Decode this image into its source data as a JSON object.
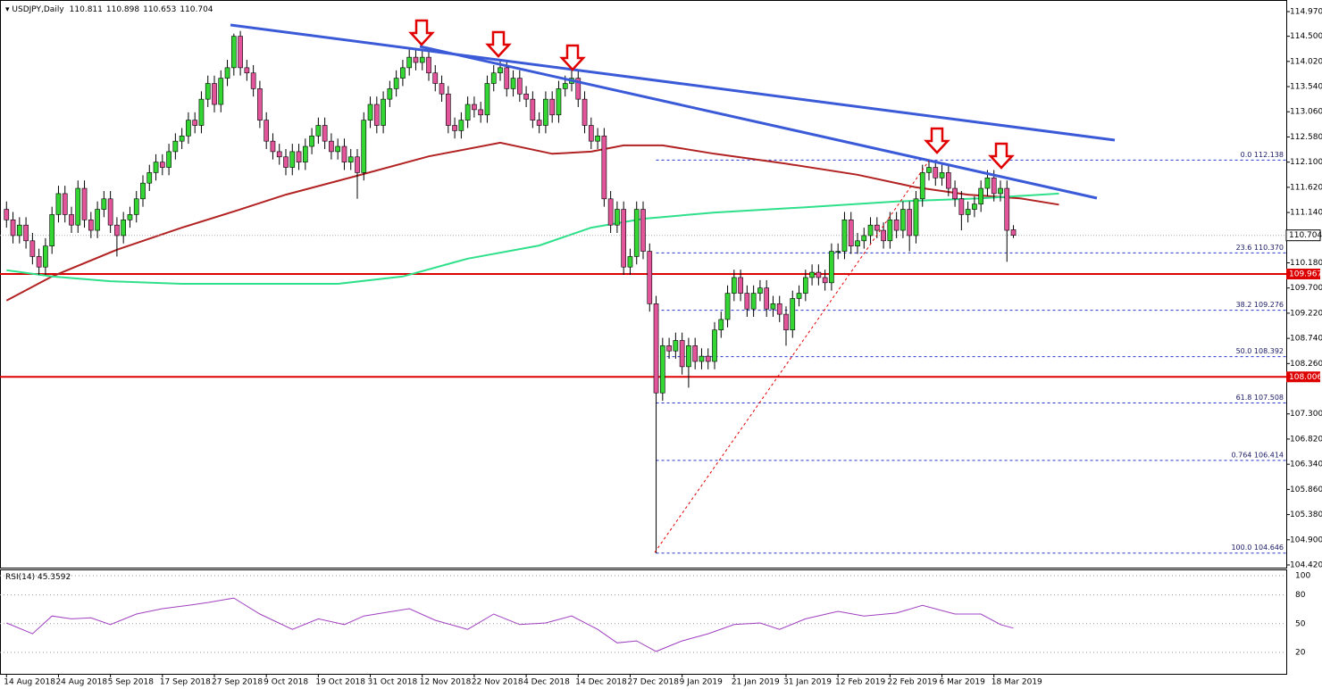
{
  "chart_data": {
    "type": "candlestick",
    "title": "USDJPY,Daily",
    "open": [
      111.2,
      111.0,
      110.7,
      110.9,
      110.6,
      110.3,
      110.1,
      110.5,
      111.1,
      111.5,
      111.1,
      110.9,
      111.6,
      111.0,
      110.8,
      111.2,
      111.4,
      110.9,
      110.7,
      111.0,
      111.1,
      111.4,
      111.7,
      111.9,
      112.1,
      112.0,
      112.3,
      112.5,
      112.6,
      112.9,
      112.8,
      113.3,
      113.6,
      113.2,
      113.7,
      113.9,
      114.5,
      113.9,
      113.8,
      113.5,
      112.9,
      112.5,
      112.3,
      112.2,
      112.0,
      112.3,
      112.1,
      112.4,
      112.6,
      112.8,
      112.5,
      112.3,
      112.4,
      112.1,
      112.2,
      111.9,
      112.9,
      113.2,
      112.8,
      113.3,
      113.5,
      113.7,
      113.9,
      114.1,
      114.0,
      114.1,
      113.8,
      113.6,
      113.4,
      112.8,
      112.7,
      112.9,
      113.2,
      113.1,
      113.0,
      113.6,
      113.8,
      113.9,
      113.5,
      113.7,
      113.4,
      113.3,
      112.9,
      112.8,
      113.3,
      113.0,
      113.5,
      113.6,
      113.7,
      113.3,
      112.8,
      112.5,
      112.6,
      111.4,
      110.9,
      111.2,
      110.1,
      110.3,
      111.2,
      110.4,
      109.4,
      107.7,
      108.6,
      108.5,
      108.7,
      108.2,
      108.6,
      108.3,
      108.4,
      108.3,
      108.9,
      109.1,
      109.6,
      109.9,
      109.6,
      109.3,
      109.6,
      109.7,
      109.3,
      109.4,
      109.2,
      108.9,
      109.5,
      109.6,
      109.9,
      110.0,
      109.9,
      109.8,
      110.4,
      110.4,
      111.0,
      110.5,
      110.6,
      110.7,
      110.9,
      110.8,
      110.6,
      111.0,
      110.8,
      111.2,
      110.7,
      111.4,
      111.9,
      112.0,
      111.8,
      111.9,
      111.6,
      111.4,
      111.1,
      111.2,
      111.3,
      111.6,
      111.8,
      111.5,
      111.6,
      110.811
    ],
    "high": [
      111.35,
      111.15,
      111.05,
      111.05,
      110.75,
      110.45,
      110.65,
      111.25,
      111.65,
      111.65,
      111.25,
      111.75,
      111.75,
      111.15,
      111.35,
      111.55,
      111.55,
      111.05,
      111.15,
      111.25,
      111.55,
      111.85,
      112.05,
      112.25,
      112.25,
      112.45,
      112.65,
      112.75,
      113.05,
      113.05,
      113.45,
      113.75,
      113.75,
      113.85,
      114.05,
      114.55,
      114.6,
      114.05,
      113.95,
      113.65,
      113.05,
      112.65,
      112.45,
      112.35,
      112.45,
      112.45,
      112.55,
      112.75,
      112.95,
      112.95,
      112.65,
      112.55,
      112.55,
      112.35,
      112.35,
      113.05,
      113.35,
      113.35,
      113.45,
      113.65,
      113.85,
      114.05,
      114.25,
      114.25,
      114.25,
      114.25,
      113.95,
      113.75,
      113.55,
      112.95,
      113.05,
      113.35,
      113.35,
      113.25,
      113.75,
      113.95,
      114.05,
      114.05,
      113.85,
      113.85,
      113.55,
      113.45,
      113.05,
      113.45,
      113.45,
      113.65,
      113.75,
      113.85,
      113.85,
      113.45,
      112.95,
      112.75,
      112.75,
      111.55,
      111.35,
      111.35,
      110.45,
      111.35,
      111.35,
      110.55,
      109.55,
      108.75,
      108.75,
      108.85,
      108.85,
      108.75,
      108.75,
      108.55,
      108.55,
      109.05,
      109.25,
      109.75,
      110.05,
      110.05,
      109.75,
      109.75,
      109.85,
      109.85,
      109.55,
      109.55,
      109.35,
      109.65,
      109.75,
      110.05,
      110.15,
      110.15,
      110.05,
      110.55,
      110.55,
      111.15,
      111.15,
      110.75,
      110.85,
      111.05,
      111.05,
      110.95,
      111.15,
      111.15,
      111.35,
      111.35,
      111.55,
      112.05,
      112.138,
      112.1,
      112.05,
      112.05,
      111.75,
      111.55,
      111.35,
      111.45,
      111.75,
      111.95,
      111.95,
      111.75,
      111.75,
      110.898
    ],
    "low": [
      110.85,
      110.55,
      110.55,
      110.45,
      110.15,
      109.95,
      109.95,
      110.35,
      110.95,
      110.95,
      110.75,
      110.75,
      110.85,
      110.65,
      110.65,
      111.05,
      110.75,
      110.3,
      110.55,
      110.85,
      110.95,
      111.25,
      111.55,
      111.75,
      111.85,
      111.85,
      112.15,
      112.35,
      112.45,
      112.65,
      112.65,
      113.15,
      113.05,
      113.05,
      113.55,
      113.75,
      113.75,
      113.65,
      113.35,
      112.75,
      112.35,
      112.15,
      112.05,
      111.85,
      111.85,
      111.95,
      111.95,
      112.25,
      112.45,
      112.35,
      112.15,
      112.15,
      111.95,
      111.95,
      111.4,
      111.75,
      112.75,
      112.65,
      112.65,
      113.15,
      113.35,
      113.55,
      113.75,
      113.85,
      113.85,
      113.65,
      113.45,
      113.25,
      112.65,
      112.55,
      112.55,
      112.75,
      112.95,
      112.85,
      112.85,
      113.45,
      113.65,
      113.35,
      113.35,
      113.25,
      113.15,
      112.75,
      112.65,
      112.65,
      112.85,
      112.85,
      113.35,
      113.45,
      113.15,
      112.65,
      112.35,
      112.35,
      111.25,
      110.75,
      110.75,
      109.95,
      109.95,
      110.15,
      110.25,
      109.25,
      104.646,
      107.55,
      108.35,
      108.35,
      108.05,
      107.8,
      108.15,
      108.15,
      108.15,
      108.15,
      108.75,
      108.95,
      109.45,
      109.45,
      109.15,
      109.15,
      109.45,
      109.15,
      109.15,
      109.05,
      108.6,
      108.75,
      109.35,
      109.45,
      109.75,
      109.75,
      109.65,
      109.65,
      110.25,
      110.25,
      110.35,
      110.35,
      110.45,
      110.55,
      110.65,
      110.45,
      110.45,
      110.65,
      110.65,
      110.4,
      110.55,
      111.25,
      111.75,
      111.65,
      111.65,
      111.45,
      111.25,
      110.8,
      110.95,
      111.05,
      111.15,
      111.45,
      111.35,
      111.35,
      110.2,
      110.653
    ],
    "close": [
      111.0,
      110.7,
      110.9,
      110.6,
      110.3,
      110.1,
      110.5,
      111.1,
      111.5,
      111.1,
      110.9,
      111.6,
      111.0,
      110.8,
      111.2,
      111.4,
      110.9,
      110.7,
      111.0,
      111.1,
      111.4,
      111.7,
      111.9,
      112.1,
      112.0,
      112.3,
      112.5,
      112.6,
      112.9,
      112.8,
      113.3,
      113.6,
      113.2,
      113.7,
      113.9,
      114.5,
      113.9,
      113.8,
      113.5,
      112.9,
      112.5,
      112.3,
      112.2,
      112.0,
      112.3,
      112.1,
      112.4,
      112.6,
      112.8,
      112.5,
      112.3,
      112.4,
      112.1,
      112.2,
      111.9,
      112.9,
      113.2,
      112.8,
      113.3,
      113.5,
      113.7,
      113.9,
      114.1,
      114.0,
      114.1,
      113.8,
      113.6,
      113.4,
      112.8,
      112.7,
      112.9,
      113.2,
      113.1,
      113.0,
      113.6,
      113.8,
      113.9,
      113.5,
      113.7,
      113.4,
      113.3,
      112.9,
      112.8,
      113.3,
      113.0,
      113.5,
      113.6,
      113.7,
      113.3,
      112.8,
      112.5,
      112.6,
      111.4,
      110.9,
      111.2,
      110.1,
      110.3,
      111.2,
      110.4,
      109.4,
      107.7,
      108.6,
      108.5,
      108.7,
      108.2,
      108.6,
      108.3,
      108.4,
      108.3,
      108.9,
      109.1,
      109.6,
      109.9,
      109.6,
      109.3,
      109.6,
      109.7,
      109.3,
      109.4,
      109.2,
      108.9,
      109.5,
      109.6,
      109.9,
      110.0,
      109.9,
      109.8,
      110.4,
      110.4,
      111.0,
      110.5,
      110.6,
      110.7,
      110.9,
      110.8,
      110.6,
      111.0,
      110.8,
      111.2,
      110.7,
      111.4,
      111.9,
      112.0,
      111.8,
      111.9,
      111.6,
      111.4,
      111.1,
      111.2,
      111.3,
      111.6,
      111.8,
      111.5,
      111.6,
      110.8,
      110.704
    ],
    "up_color": "#33d633",
    "down_color": "#e2559a",
    "xlim": [
      -1,
      197
    ],
    "xticks": [
      {
        "value": 0,
        "label": "14 Aug 2018"
      },
      {
        "value": 8,
        "label": "24 Aug 2018"
      },
      {
        "value": 16,
        "label": "5 Sep 2018"
      },
      {
        "value": 24,
        "label": "17 Sep 2018"
      },
      {
        "value": 32,
        "label": "27 Sep 2018"
      },
      {
        "value": 40,
        "label": "9 Oct 2018"
      },
      {
        "value": 48,
        "label": "19 Oct 2018"
      },
      {
        "value": 56,
        "label": "31 Oct 2018"
      },
      {
        "value": 64,
        "label": "12 Nov 2018"
      },
      {
        "value": 72,
        "label": "22 Nov 2018"
      },
      {
        "value": 80,
        "label": "4 Dec 2018"
      },
      {
        "value": 88,
        "label": "14 Dec 2018"
      },
      {
        "value": 96,
        "label": "27 Dec 2018"
      },
      {
        "value": 104,
        "label": "9 Jan 2019"
      },
      {
        "value": 112,
        "label": "21 Jan 2019"
      },
      {
        "value": 120,
        "label": "31 Jan 2019"
      },
      {
        "value": 128,
        "label": "12 Feb 2019"
      },
      {
        "value": 136,
        "label": "22 Feb 2019"
      },
      {
        "value": 144,
        "label": "6 Mar 2019"
      },
      {
        "value": 152,
        "label": "18 Mar 2019"
      }
    ],
    "ylim": [
      104.386,
      115.106
    ],
    "yticks": [
      {
        "value": 114.97,
        "label": "114.970"
      },
      {
        "value": 114.5,
        "label": "114.500"
      },
      {
        "value": 114.02,
        "label": "114.020"
      },
      {
        "value": 113.54,
        "label": "113.540"
      },
      {
        "value": 113.06,
        "label": "113.060"
      },
      {
        "value": 112.58,
        "label": "112.580"
      },
      {
        "value": 112.1,
        "label": "112.100"
      },
      {
        "value": 111.62,
        "label": "111.620"
      },
      {
        "value": 111.14,
        "label": "111.140"
      },
      {
        "value": 110.18,
        "label": "110.180"
      },
      {
        "value": 109.7,
        "label": "109.700"
      },
      {
        "value": 109.22,
        "label": "109.220"
      },
      {
        "value": 108.74,
        "label": "108.740"
      },
      {
        "value": 108.26,
        "label": "108.260"
      },
      {
        "value": 107.3,
        "label": "107.300"
      },
      {
        "value": 106.82,
        "label": "106.820"
      },
      {
        "value": 106.34,
        "label": "106.340"
      },
      {
        "value": 105.86,
        "label": "105.860"
      },
      {
        "value": 105.38,
        "label": "105.380"
      },
      {
        "value": 104.9,
        "label": "104.900"
      },
      {
        "value": 104.42,
        "label": "104.420"
      }
    ],
    "moving_averages": [
      {
        "color": "#b22222",
        "x": [
          0,
          7,
          17,
          27,
          35,
          43,
          54,
          65,
          76,
          84,
          90,
          95,
          101,
          109,
          120,
          131,
          140,
          148,
          156,
          162
        ],
        "values": [
          109.46,
          109.92,
          110.43,
          110.85,
          111.16,
          111.48,
          111.84,
          112.21,
          112.47,
          112.26,
          112.3,
          112.42,
          112.42,
          112.26,
          112.07,
          111.86,
          111.62,
          111.48,
          111.41,
          111.29
        ]
      },
      {
        "color": "#2ee08a",
        "x": [
          0,
          7,
          16,
          27,
          40,
          51,
          61,
          71,
          82,
          90,
          98,
          109,
          123,
          137,
          150,
          162
        ],
        "values": [
          110.04,
          109.92,
          109.83,
          109.78,
          109.78,
          109.78,
          109.92,
          110.26,
          110.51,
          110.85,
          111.02,
          111.14,
          111.24,
          111.35,
          111.41,
          111.5
        ]
      }
    ],
    "levels": [
      {
        "value": 109.967,
        "color": "#dd0000"
      },
      {
        "value": 108.006,
        "color": "#dd0000"
      }
    ],
    "fib_color": "#2233cc",
    "fib": [
      {
        "value": 112.138,
        "label": "0.0 112.138"
      },
      {
        "value": 110.37,
        "label": "23.6 110.370"
      },
      {
        "value": 109.276,
        "label": "38.2 109.276"
      },
      {
        "value": 108.392,
        "label": "50.0 108.392"
      },
      {
        "value": 107.508,
        "label": "61.8 107.508"
      },
      {
        "value": 106.414,
        "label": "0.764 106.414"
      },
      {
        "value": 104.646,
        "label": "100.0 104.646"
      }
    ],
    "rsi": {
      "name": "RSI(14)",
      "color": "#a040c0",
      "ylim": [
        -2.3,
        104.65
      ],
      "yticks": [
        100,
        80,
        50,
        20
      ],
      "x": [
        0,
        4,
        7,
        10,
        13,
        16,
        20,
        24,
        28,
        31,
        35,
        39,
        44,
        48,
        52,
        55,
        62,
        66,
        71,
        75,
        79,
        83,
        87,
        91,
        94,
        97,
        100,
        104,
        108,
        112,
        116,
        119,
        123,
        128,
        132,
        137,
        141,
        146,
        150,
        153,
        155
      ],
      "values": [
        50.7,
        39.5,
        58,
        55,
        56,
        49,
        60,
        65.6,
        69,
        72,
        76.7,
        60,
        44,
        55,
        49,
        58,
        65.6,
        53.5,
        44,
        60,
        49,
        50.7,
        58,
        44,
        30,
        32,
        21,
        32,
        39.5,
        49,
        50.7,
        44,
        55,
        62.8,
        58,
        61,
        69,
        60,
        60,
        49,
        45.3592
      ]
    }
  }
}
